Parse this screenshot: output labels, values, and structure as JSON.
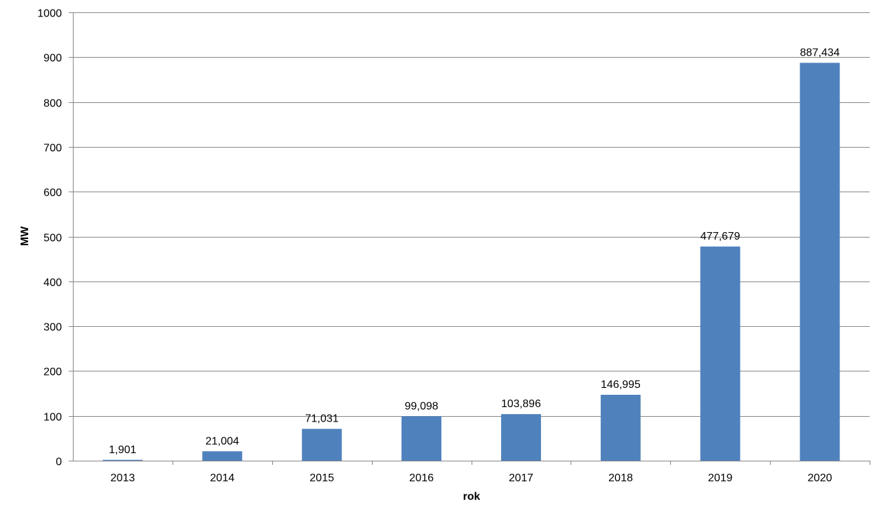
{
  "chart_data": {
    "type": "bar",
    "categories": [
      "2013",
      "2014",
      "2015",
      "2016",
      "2017",
      "2018",
      "2019",
      "2020"
    ],
    "values": [
      1.901,
      21.004,
      71.031,
      99.098,
      103.896,
      146.995,
      477.679,
      887.434
    ],
    "value_labels": [
      "1,901",
      "21,004",
      "71,031",
      "99,098",
      "103,896",
      "146,995",
      "477,679",
      "887,434"
    ],
    "title": "",
    "xlabel": "rok",
    "ylabel": "MW",
    "ylim": [
      0,
      1000
    ],
    "yticks": [
      "0",
      "100",
      "200",
      "300",
      "400",
      "500",
      "600",
      "700",
      "800",
      "900",
      "1000"
    ],
    "grid": true,
    "legend": "none",
    "bar_color": "#4f81bd",
    "grid_color": "#868686"
  }
}
